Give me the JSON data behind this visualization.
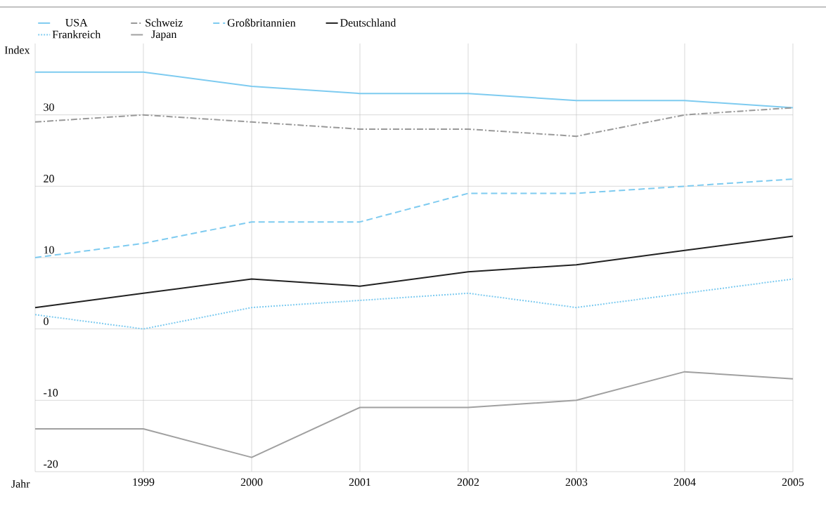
{
  "chart_data": {
    "type": "line",
    "xlabel": "Jahr",
    "ylabel": "Index",
    "x": [
      1998,
      1999,
      2000,
      2001,
      2002,
      2003,
      2004,
      2005
    ],
    "xlim": [
      1998,
      2005
    ],
    "xticks": [
      {
        "value": 1998,
        "label": null
      },
      1999,
      2000,
      2001,
      2002,
      2003,
      2004,
      2005
    ],
    "ylim": [
      -20,
      40
    ],
    "yticks": [
      -20,
      -10,
      0,
      10,
      20,
      30
    ],
    "grid": true,
    "legend": "top",
    "series": [
      {
        "name": "USA",
        "color": "#7ecbf0",
        "line_style": "solid",
        "values": [
          36,
          36,
          34,
          33,
          33,
          32,
          32,
          31
        ]
      },
      {
        "name": "Schweiz",
        "color": "#999999",
        "line_style": "dashdot",
        "values": [
          29,
          30,
          29,
          28,
          28,
          27,
          30,
          31
        ]
      },
      {
        "name": "Großbritannien",
        "color": "#7ecbf0",
        "line_style": "dashed",
        "values": [
          10,
          12,
          15,
          15,
          19,
          19,
          20,
          21
        ]
      },
      {
        "name": "Deutschland",
        "color": "#222222",
        "line_style": "solid",
        "values": [
          3,
          5,
          7,
          6,
          8,
          9,
          11,
          13
        ]
      },
      {
        "name": "Frankreich",
        "color": "#7ecbf0",
        "line_style": "dotted",
        "values": [
          2,
          0,
          3,
          4,
          5,
          3,
          5,
          7
        ]
      },
      {
        "name": "Japan",
        "color": "#a0a0a0",
        "line_style": "solid",
        "values": [
          -14,
          -14,
          -18,
          -11,
          -11,
          -10,
          -6,
          -7
        ]
      }
    ]
  }
}
